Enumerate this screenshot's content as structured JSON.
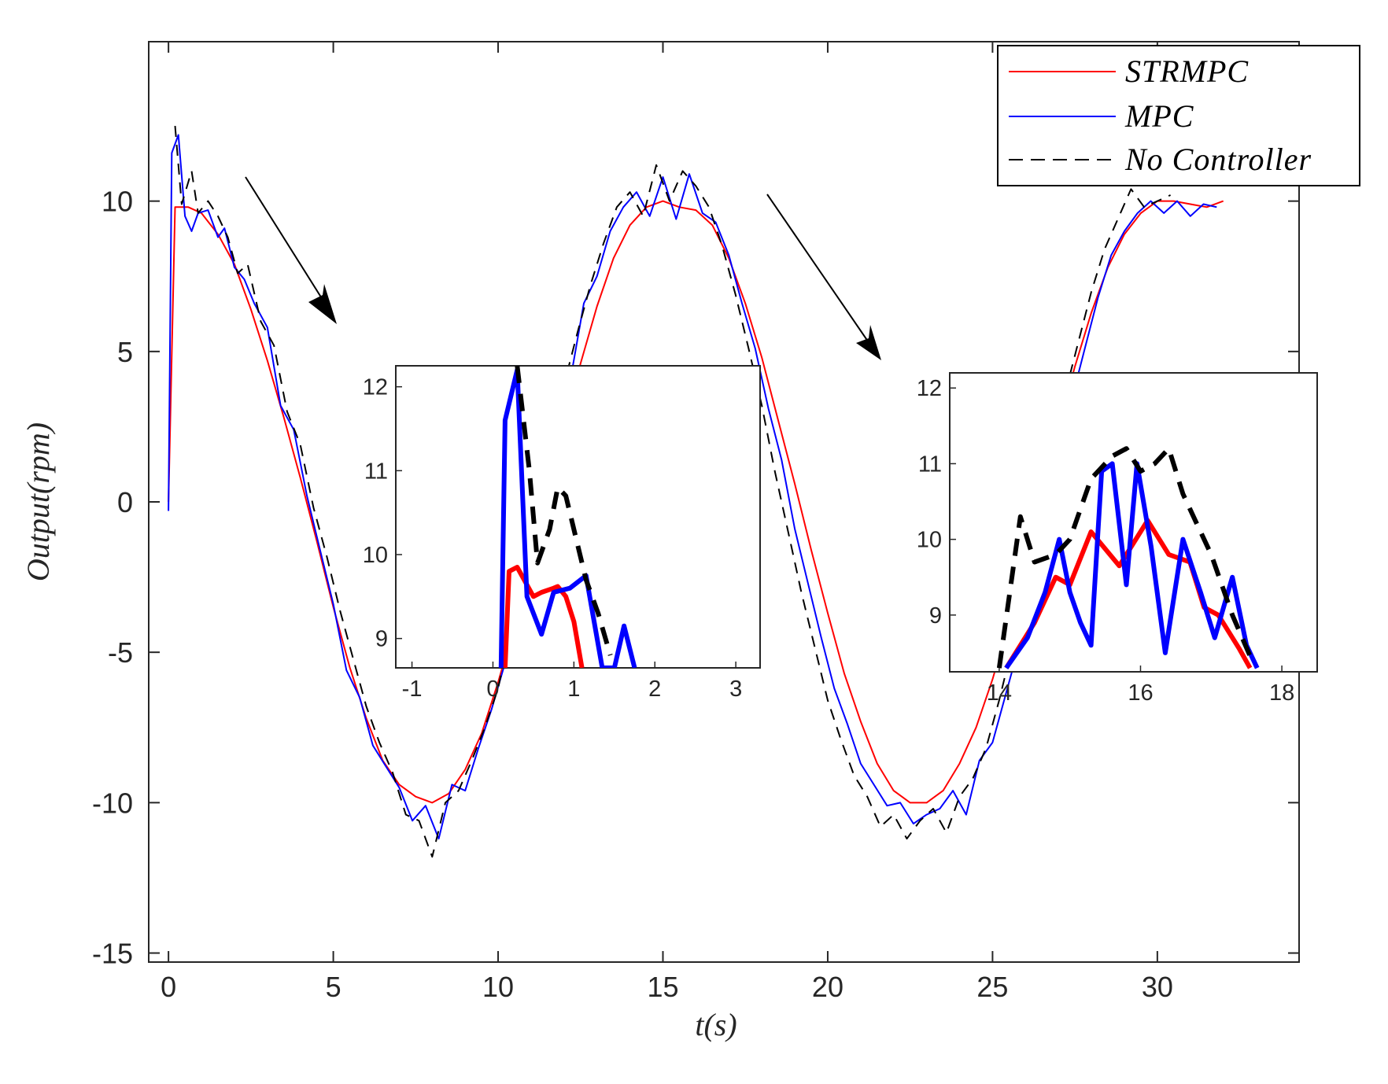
{
  "chart_data": {
    "type": "line",
    "xlabel": "t(s)",
    "ylabel": "Output(rpm)",
    "xlim": [
      -0.6,
      34.3
    ],
    "ylim": [
      -15.3,
      15.3
    ],
    "xticks": [
      0,
      5,
      10,
      15,
      20,
      25,
      30
    ],
    "xtick_labels": [
      "0",
      "5",
      "10",
      "15",
      "20",
      "25",
      "30"
    ],
    "yticks": [
      -15,
      -10,
      -5,
      0,
      5,
      10
    ],
    "ytick_labels": [
      "-15",
      "-10",
      "-5",
      "0",
      "5",
      "10"
    ],
    "legend_position": "top-right",
    "series": [
      {
        "name": "STRMPC",
        "legend_label": "STRMPC",
        "color": "#ff0000",
        "style": "solid",
        "x": [
          0,
          0.2,
          0.6,
          1.0,
          1.5,
          2.0,
          2.5,
          3.0,
          3.5,
          4.0,
          4.5,
          5.0,
          5.5,
          6.0,
          6.5,
          7.0,
          7.5,
          8.0,
          8.5,
          9.0,
          9.5,
          10.0,
          10.5,
          11.0,
          11.5,
          12.0,
          12.5,
          13.0,
          13.5,
          14.0,
          14.5,
          15.0,
          15.5,
          16.0,
          16.5,
          17.0,
          17.5,
          18.0,
          18.5,
          19.0,
          19.5,
          20.0,
          20.5,
          21.0,
          21.5,
          22.0,
          22.5,
          23.0,
          23.5,
          24.0,
          24.5,
          25.0,
          25.5,
          26.0,
          26.5,
          27.0,
          27.5,
          28.0,
          28.5,
          29.0,
          29.5,
          30.0,
          30.5,
          31.0,
          31.5,
          32.0
        ],
        "y": [
          0,
          9.8,
          9.8,
          9.6,
          8.9,
          7.9,
          6.4,
          4.7,
          2.8,
          0.8,
          -1.3,
          -3.5,
          -5.5,
          -7.2,
          -8.6,
          -9.4,
          -9.8,
          -10.0,
          -9.7,
          -8.9,
          -7.7,
          -6.0,
          -4.1,
          -2.0,
          0.2,
          2.4,
          4.6,
          6.5,
          8.1,
          9.2,
          9.8,
          10.0,
          9.8,
          9.7,
          9.2,
          8.1,
          6.6,
          4.8,
          2.7,
          0.6,
          -1.6,
          -3.7,
          -5.7,
          -7.3,
          -8.7,
          -9.6,
          -10.0,
          -10.0,
          -9.6,
          -8.7,
          -7.5,
          -5.9,
          -4.0,
          -1.9,
          0.3,
          2.5,
          4.5,
          6.3,
          7.8,
          8.9,
          9.6,
          10.0,
          10.0,
          9.9,
          9.8,
          10.0
        ]
      },
      {
        "name": "MPC",
        "legend_label": "MPC",
        "color": "#0000ff",
        "style": "solid",
        "x": [
          0,
          0.1,
          0.3,
          0.5,
          0.7,
          0.9,
          1.2,
          1.5,
          1.7,
          2.0,
          2.3,
          2.6,
          3.0,
          3.4,
          3.8,
          4.2,
          4.6,
          5.0,
          5.4,
          5.8,
          6.2,
          6.6,
          7.0,
          7.4,
          7.8,
          8.2,
          8.6,
          9.0,
          9.4,
          9.8,
          10.2,
          10.6,
          11.0,
          11.4,
          11.8,
          12.2,
          12.6,
          13.0,
          13.4,
          13.8,
          14.2,
          14.6,
          15.0,
          15.4,
          15.8,
          16.2,
          16.6,
          17.0,
          17.4,
          17.8,
          18.2,
          18.6,
          19.0,
          19.4,
          19.8,
          20.2,
          20.6,
          21.0,
          21.4,
          21.8,
          22.2,
          22.6,
          23.0,
          23.4,
          23.8,
          24.2,
          24.6,
          25.0,
          25.4,
          25.8,
          26.2,
          26.6,
          27.0,
          27.4,
          27.8,
          28.2,
          28.6,
          29.0,
          29.4,
          29.8,
          30.2,
          30.6,
          31.0,
          31.4,
          31.8
        ],
        "y": [
          -0.3,
          11.6,
          12.2,
          9.5,
          9.0,
          9.6,
          9.7,
          8.8,
          9.1,
          7.8,
          7.4,
          6.6,
          5.8,
          3.2,
          2.4,
          0.2,
          -1.6,
          -3.4,
          -5.6,
          -6.5,
          -8.1,
          -8.8,
          -9.5,
          -10.6,
          -10.1,
          -11.2,
          -9.4,
          -9.6,
          -8.2,
          -6.9,
          -5.4,
          -3.4,
          -1.8,
          0.6,
          2.2,
          4.1,
          6.6,
          7.5,
          9.0,
          9.8,
          10.3,
          9.5,
          10.8,
          9.4,
          10.9,
          9.6,
          9.3,
          8.2,
          6.6,
          5.1,
          3.1,
          1.4,
          -0.9,
          -2.7,
          -4.5,
          -6.2,
          -7.4,
          -8.7,
          -9.4,
          -10.1,
          -10.0,
          -10.7,
          -10.4,
          -10.2,
          -9.6,
          -10.4,
          -8.6,
          -8.0,
          -6.4,
          -4.8,
          -2.3,
          -0.6,
          1.7,
          3.4,
          5.1,
          6.8,
          8.2,
          9.0,
          9.6,
          10.0,
          9.6,
          10.0,
          9.5,
          9.9,
          9.8
        ]
      },
      {
        "name": "No Controller",
        "legend_label": "No Controller",
        "color": "#000000",
        "style": "dashed",
        "x": [
          0.2,
          0.4,
          0.7,
          0.9,
          1.2,
          1.5,
          1.8,
          2.1,
          2.4,
          2.8,
          3.2,
          3.6,
          4.0,
          4.4,
          4.8,
          5.2,
          5.6,
          6.0,
          6.4,
          6.8,
          7.2,
          7.6,
          8.0,
          8.4,
          8.8,
          9.2,
          9.6,
          10.0,
          10.4,
          10.8,
          11.2,
          11.6,
          12.0,
          12.4,
          12.8,
          13.2,
          13.6,
          14.0,
          14.4,
          14.8,
          15.2,
          15.6,
          16.0,
          16.4,
          16.8,
          17.2,
          17.6,
          18.0,
          18.4,
          18.8,
          19.2,
          19.6,
          20.0,
          20.4,
          20.8,
          21.2,
          21.6,
          22.0,
          22.4,
          22.8,
          23.2,
          23.6,
          24.0,
          24.4,
          24.8,
          25.2,
          25.6,
          26.0,
          26.4,
          26.8,
          27.2,
          27.6,
          28.0,
          28.4,
          28.8,
          29.2,
          29.6,
          30.0,
          30.4
        ],
        "y": [
          12.5,
          9.9,
          11.0,
          9.6,
          10.0,
          9.5,
          8.8,
          7.6,
          7.9,
          6.0,
          5.2,
          3.0,
          1.9,
          -0.2,
          -1.8,
          -3.6,
          -5.2,
          -6.8,
          -8.0,
          -9.0,
          -10.4,
          -10.6,
          -11.8,
          -10.0,
          -9.6,
          -8.6,
          -7.5,
          -6.2,
          -4.2,
          -2.3,
          -0.4,
          1.8,
          3.9,
          5.6,
          7.2,
          8.6,
          9.8,
          10.3,
          9.5,
          11.2,
          10.0,
          11.0,
          10.5,
          9.8,
          8.5,
          6.9,
          5.1,
          3.2,
          1.0,
          -1.0,
          -3.0,
          -4.8,
          -6.6,
          -7.9,
          -9.1,
          -9.8,
          -10.8,
          -10.4,
          -11.2,
          -10.6,
          -10.2,
          -11.0,
          -9.8,
          -9.2,
          -8.2,
          -6.6,
          -4.8,
          -2.8,
          -0.6,
          1.5,
          3.6,
          5.3,
          7.0,
          8.4,
          9.4,
          10.4,
          9.8,
          10.0,
          10.2
        ]
      }
    ],
    "insets": [
      {
        "xlim": [
          -1.2,
          3.3
        ],
        "ylim": [
          8.65,
          12.25
        ],
        "xticks": [
          -1,
          0,
          1,
          2,
          3
        ],
        "xtick_labels": [
          "-1",
          "0",
          "1",
          "2",
          "3"
        ],
        "yticks": [
          9,
          10,
          11,
          12
        ],
        "ytick_labels": [
          "9",
          "10",
          "11",
          "12"
        ],
        "series": [
          {
            "name": "STRMPC",
            "x": [
              0.15,
              0.2,
              0.3,
              0.5,
              0.6,
              0.75,
              0.8,
              0.9,
              1.0,
              1.1
            ],
            "y": [
              8.65,
              9.8,
              9.85,
              9.5,
              9.55,
              9.6,
              9.62,
              9.5,
              9.2,
              8.65
            ]
          },
          {
            "name": "MPC",
            "x": [
              0.1,
              0.15,
              0.3,
              0.42,
              0.6,
              0.75,
              0.95,
              1.15,
              1.35,
              1.5,
              1.62,
              1.75
            ],
            "y": [
              8.65,
              11.6,
              12.2,
              9.5,
              9.05,
              9.55,
              9.6,
              9.75,
              8.65,
              8.65,
              9.15,
              8.65
            ]
          },
          {
            "name": "No Controller",
            "x": [
              0.3,
              0.45,
              0.55,
              0.7,
              0.8,
              0.9,
              1.05,
              1.15,
              1.3,
              1.45
            ],
            "y": [
              12.25,
              11.0,
              9.9,
              10.3,
              10.8,
              10.7,
              10.1,
              9.7,
              9.3,
              8.8
            ]
          }
        ]
      },
      {
        "xlim": [
          13.3,
          18.5
        ],
        "ylim": [
          8.25,
          12.2
        ],
        "xticks": [
          14,
          16,
          18
        ],
        "xtick_labels": [
          "14",
          "16",
          "18"
        ],
        "yticks": [
          9,
          10,
          11,
          12
        ],
        "ytick_labels": [
          "9",
          "10",
          "11",
          "12"
        ],
        "series": [
          {
            "name": "STRMPC",
            "x": [
              14.1,
              14.5,
              14.8,
              15.0,
              15.3,
              15.7,
              16.1,
              16.4,
              16.7,
              16.9,
              17.1,
              17.4,
              17.55
            ],
            "y": [
              8.3,
              8.9,
              9.5,
              9.4,
              10.1,
              9.65,
              10.25,
              9.8,
              9.7,
              9.1,
              9.0,
              8.55,
              8.3
            ]
          },
          {
            "name": "MPC",
            "x": [
              14.1,
              14.4,
              14.65,
              14.85,
              15.0,
              15.15,
              15.3,
              15.45,
              15.6,
              15.8,
              15.95,
              16.15,
              16.35,
              16.6,
              16.85,
              17.05,
              17.3,
              17.5,
              17.65
            ],
            "y": [
              8.3,
              8.7,
              9.3,
              10.0,
              9.3,
              8.9,
              8.6,
              10.9,
              11.0,
              9.4,
              11.0,
              9.9,
              8.5,
              10.0,
              9.3,
              8.7,
              9.5,
              8.6,
              8.3
            ]
          },
          {
            "name": "No Controller",
            "x": [
              14.0,
              14.3,
              14.5,
              14.8,
              15.0,
              15.3,
              15.6,
              15.8,
              16.0,
              16.2,
              16.4,
              16.6,
              16.8,
              17.0,
              17.3,
              17.6
            ],
            "y": [
              8.3,
              10.3,
              9.7,
              9.8,
              10.0,
              10.8,
              11.1,
              11.2,
              10.9,
              11.0,
              11.2,
              10.6,
              10.2,
              9.8,
              9.0,
              8.35
            ]
          }
        ]
      }
    ]
  }
}
